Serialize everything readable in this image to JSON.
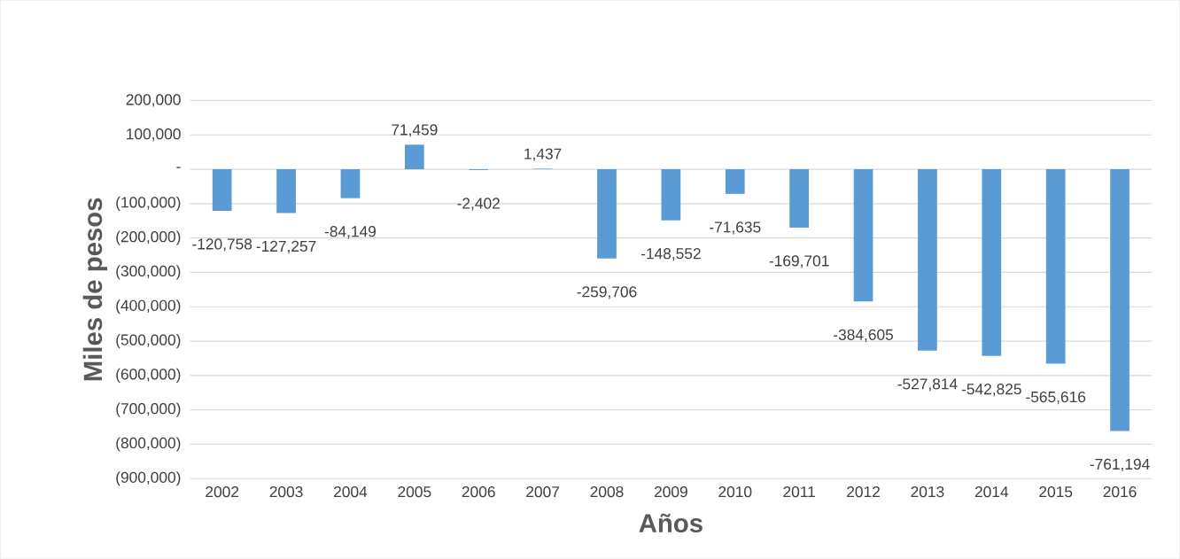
{
  "chart_data": {
    "type": "bar",
    "xlabel": "Años",
    "ylabel": "Miles de pesos",
    "categories": [
      "2002",
      "2003",
      "2004",
      "2005",
      "2006",
      "2007",
      "2008",
      "2009",
      "2010",
      "2011",
      "2012",
      "2013",
      "2014",
      "2015",
      "2016"
    ],
    "values": [
      -120758,
      -127257,
      -84149,
      71459,
      -2402,
      1437,
      -259706,
      -148552,
      -71635,
      -169701,
      -384605,
      -527814,
      -542825,
      -565616,
      -761194
    ],
    "value_labels": [
      "-120,758",
      "-127,257",
      "-84,149",
      "71,459",
      "-2,402",
      "1,437",
      "-259,706",
      "-148,552",
      "-71,635",
      "-169,701",
      "-384,605",
      "-527,814",
      "-542,825",
      "-565,616",
      "-761,194"
    ],
    "color": "#5b9bd5",
    "ylim": [
      -900000,
      200000
    ],
    "yticks": [
      {
        "value": -900000,
        "label": "(900,000)"
      },
      {
        "value": -800000,
        "label": "(800,000)"
      },
      {
        "value": -700000,
        "label": "(700,000)"
      },
      {
        "value": -600000,
        "label": "(600,000)"
      },
      {
        "value": -500000,
        "label": "(500,000)"
      },
      {
        "value": -400000,
        "label": "(400,000)"
      },
      {
        "value": -300000,
        "label": "(300,000)"
      },
      {
        "value": -200000,
        "label": "(200,000)"
      },
      {
        "value": -100000,
        "label": "(100,000)"
      },
      {
        "value": 0,
        "label": "-"
      },
      {
        "value": 100000,
        "label": "100,000"
      },
      {
        "value": 200000,
        "label": "200,000"
      }
    ],
    "grid": "y"
  }
}
